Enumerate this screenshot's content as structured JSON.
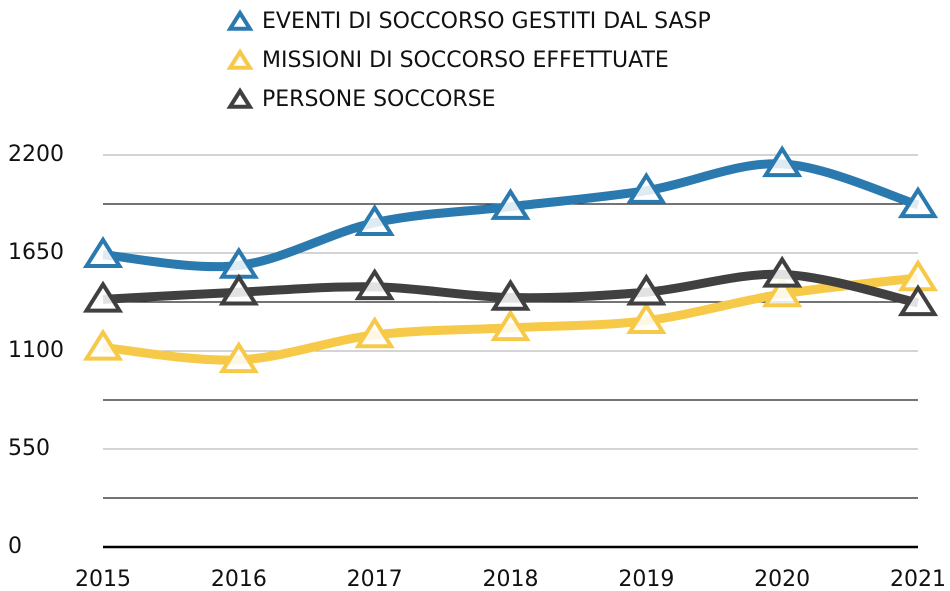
{
  "chart_data": {
    "type": "line",
    "x": [
      "2015",
      "2016",
      "2017",
      "2018",
      "2019",
      "2020",
      "2021"
    ],
    "series": [
      {
        "name": "EVENTI DI SOCCORSO GESTITI DAL SASP",
        "color": "#2a7ab0",
        "values": [
          1640,
          1580,
          1820,
          1910,
          2000,
          2150,
          1920
        ]
      },
      {
        "name": "MISSIONI DI SOCCORSO EFFETTUATE",
        "color": "#f7c948",
        "values": [
          1120,
          1050,
          1190,
          1230,
          1270,
          1420,
          1510
        ]
      },
      {
        "name": "PERSONE SOCCORSE",
        "color": "#404040",
        "values": [
          1390,
          1430,
          1460,
          1400,
          1430,
          1530,
          1370
        ]
      }
    ],
    "ylim": [
      0,
      2200
    ],
    "yticks": [
      0,
      550,
      1100,
      1650,
      2200
    ],
    "minor_yticks": [
      275,
      825,
      1375,
      1925
    ],
    "grid": true,
    "smooth": true,
    "marker": "triangle",
    "legend": "top"
  }
}
